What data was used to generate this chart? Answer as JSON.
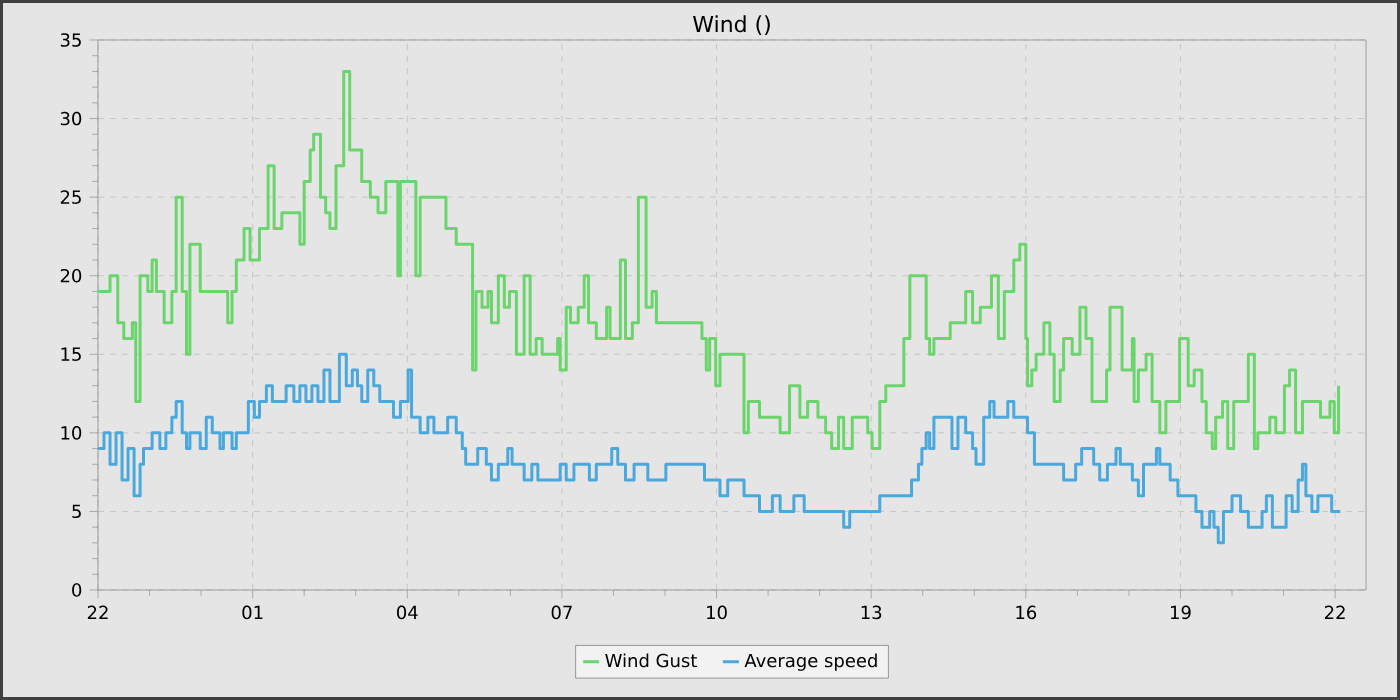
{
  "chart_data": {
    "type": "step",
    "title": "Wind ()",
    "xlim": [
      "--01-01T22:00",
      "--01-02T22:36"
    ],
    "ylim": [
      0,
      35
    ],
    "xticks": [
      {
        "value": "--01-01T22:00",
        "label": "22"
      },
      {
        "value": "--01-02T01:00",
        "label": "01"
      },
      {
        "value": "--01-02T04:00",
        "label": "04"
      },
      {
        "value": "--01-02T07:00",
        "label": "07"
      },
      {
        "value": "--01-02T10:00",
        "label": "10"
      },
      {
        "value": "--01-02T13:00",
        "label": "13"
      },
      {
        "value": "--01-02T16:00",
        "label": "16"
      },
      {
        "value": "--01-02T19:00",
        "label": "19"
      },
      {
        "value": "--01-02T22:00",
        "label": "22"
      }
    ],
    "yticks": [
      0,
      5,
      10,
      15,
      20,
      25,
      30,
      35
    ],
    "grid": true,
    "legend": "bottom",
    "series": [
      {
        "name": "Wind Gust",
        "color": "#6cd46c",
        "x": [
          "--01-01T22:00",
          "--01-01T22:14",
          "--01-01T22:23",
          "--01-01T22:30",
          "--01-01T22:40",
          "--01-01T22:44",
          "--01-01T22:49",
          "--01-01T22:58",
          "--01-01T23:03",
          "--01-01T23:08",
          "--01-01T23:17",
          "--01-01T23:26",
          "--01-01T23:31",
          "--01-01T23:38",
          "--01-01T23:43",
          "--01-01T23:47",
          "--01-01T23:59",
          "--01-02T00:17",
          "--01-02T00:31",
          "--01-02T00:36",
          "--01-02T00:41",
          "--01-02T00:50",
          "--01-02T00:57",
          "--01-02T01:08",
          "--01-02T01:18",
          "--01-02T01:25",
          "--01-02T01:34",
          "--01-02T01:55",
          "--01-02T02:00",
          "--01-02T02:07",
          "--01-02T02:11",
          "--01-02T02:19",
          "--01-02T02:25",
          "--01-02T02:30",
          "--01-02T02:37",
          "--01-02T02:46",
          "--01-02T02:53",
          "--01-02T03:07",
          "--01-02T03:17",
          "--01-02T03:26",
          "--01-02T03:35",
          "--01-02T03:49",
          "--01-02T03:52",
          "--01-02T04:10",
          "--01-02T04:15",
          "--01-02T04:45",
          "--01-02T04:57",
          "--01-02T05:16",
          "--01-02T05:20",
          "--01-02T05:27",
          "--01-02T05:34",
          "--01-02T05:38",
          "--01-02T05:46",
          "--01-02T05:53",
          "--01-02T05:59",
          "--01-02T06:07",
          "--01-02T06:16",
          "--01-02T06:23",
          "--01-02T06:30",
          "--01-02T06:37",
          "--01-02T06:55",
          "--01-02T06:58",
          "--01-02T07:05",
          "--01-02T07:10",
          "--01-02T07:19",
          "--01-02T07:26",
          "--01-02T07:31",
          "--01-02T07:40",
          "--01-02T07:52",
          "--01-02T07:56",
          "--01-02T08:08",
          "--01-02T08:14",
          "--01-02T08:22",
          "--01-02T08:29",
          "--01-02T08:38",
          "--01-02T08:45",
          "--01-02T08:50",
          "--01-02T09:43",
          "--01-02T09:48",
          "--01-02T09:52",
          "--01-02T09:59",
          "--01-02T10:04",
          "--01-02T10:32",
          "--01-02T10:37",
          "--01-02T10:50",
          "--01-02T11:14",
          "--01-02T11:25",
          "--01-02T11:37",
          "--01-02T11:46",
          "--01-02T11:58",
          "--01-02T12:07",
          "--01-02T12:14",
          "--01-02T12:22",
          "--01-02T12:28",
          "--01-02T12:38",
          "--01-02T12:56",
          "--01-02T13:01",
          "--01-02T13:10",
          "--01-02T13:17",
          "--01-02T13:38",
          "--01-02T13:45",
          "--01-02T14:04",
          "--01-02T14:08",
          "--01-02T14:13",
          "--01-02T14:32",
          "--01-02T14:50",
          "--01-02T14:58",
          "--01-02T15:07",
          "--01-02T15:20",
          "--01-02T15:28",
          "--01-02T15:35",
          "--01-02T15:46",
          "--01-02T15:53",
          "--01-02T16:00",
          "--01-02T16:02",
          "--01-02T16:07",
          "--01-02T16:12",
          "--01-02T16:21",
          "--01-02T16:28",
          "--01-02T16:33",
          "--01-02T16:40",
          "--01-02T16:44",
          "--01-02T16:54",
          "--01-02T17:03",
          "--01-02T17:10",
          "--01-02T17:17",
          "--01-02T17:34",
          "--01-02T17:38",
          "--01-02T17:52",
          "--01-02T18:04",
          "--01-02T18:06",
          "--01-02T18:11",
          "--01-02T18:20",
          "--01-02T18:27",
          "--01-02T18:36",
          "--01-02T18:43",
          "--01-02T18:59",
          "--01-02T19:09",
          "--01-02T19:16",
          "--01-02T19:25",
          "--01-02T19:30",
          "--01-02T19:37",
          "--01-02T19:41",
          "--01-02T19:49",
          "--01-02T19:55",
          "--01-02T20:02",
          "--01-02T20:19",
          "--01-02T20:26",
          "--01-02T20:30",
          "--01-02T20:44",
          "--01-02T20:51",
          "--01-02T21:01",
          "--01-02T21:07",
          "--01-02T21:14",
          "--01-02T21:22",
          "--01-02T21:43",
          "--01-02T21:54",
          "--01-02T21:59",
          "--01-02T22:04"
        ],
        "values": [
          19,
          20,
          17,
          16,
          17,
          12,
          20,
          19,
          21,
          19,
          17,
          19,
          25,
          19,
          15,
          22,
          19,
          19,
          17,
          19,
          21,
          23,
          21,
          23,
          27,
          23,
          24,
          22,
          26,
          28,
          29,
          25,
          24,
          23,
          27,
          33,
          28,
          26,
          25,
          24,
          26,
          20,
          26,
          20,
          25,
          23,
          22,
          14,
          19,
          18,
          19,
          17,
          20,
          18,
          19,
          15,
          20,
          15,
          16,
          15,
          16,
          14,
          18,
          17,
          18,
          20,
          17,
          16,
          18,
          16,
          21,
          16,
          17,
          25,
          18,
          19,
          17,
          16,
          14,
          16,
          13,
          15,
          10,
          12,
          11,
          10,
          13,
          11,
          12,
          11,
          10,
          9,
          11,
          9,
          11,
          10,
          9,
          12,
          13,
          16,
          20,
          16,
          15,
          16,
          17,
          19,
          17,
          18,
          20,
          16,
          19,
          21,
          22,
          16,
          13,
          14,
          15,
          17,
          15,
          12,
          14,
          16,
          15,
          18,
          16,
          12,
          14,
          18,
          14,
          16,
          12,
          14,
          15,
          12,
          10,
          12,
          16,
          13,
          14,
          12,
          10,
          9,
          11,
          12,
          9,
          12,
          15,
          9,
          10,
          11,
          10,
          13,
          14,
          10,
          12,
          11,
          12,
          10,
          13
        ]
      },
      {
        "name": "Average speed",
        "color": "#4aa8dc",
        "x": [
          "--01-01T22:00",
          "--01-01T22:07",
          "--01-01T22:14",
          "--01-01T22:21",
          "--01-01T22:28",
          "--01-01T22:35",
          "--01-01T22:42",
          "--01-01T22:49",
          "--01-01T22:53",
          "--01-01T23:03",
          "--01-01T23:12",
          "--01-01T23:19",
          "--01-01T23:26",
          "--01-01T23:31",
          "--01-01T23:38",
          "--01-01T23:43",
          "--01-01T23:47",
          "--01-01T23:59",
          "--01-02T00:06",
          "--01-02T00:13",
          "--01-02T00:22",
          "--01-02T00:26",
          "--01-02T00:36",
          "--01-02T00:41",
          "--01-02T00:55",
          "--01-02T01:02",
          "--01-02T01:08",
          "--01-02T01:16",
          "--01-02T01:23",
          "--01-02T01:39",
          "--01-02T01:48",
          "--01-02T01:55",
          "--01-02T02:02",
          "--01-02T02:09",
          "--01-02T02:16",
          "--01-02T02:23",
          "--01-02T02:30",
          "--01-02T02:41",
          "--01-02T02:49",
          "--01-02T02:56",
          "--01-02T03:02",
          "--01-02T03:07",
          "--01-02T03:14",
          "--01-02T03:21",
          "--01-02T03:28",
          "--01-02T03:44",
          "--01-02T03:52",
          "--01-02T04:01",
          "--01-02T04:05",
          "--01-02T04:15",
          "--01-02T04:24",
          "--01-02T04:31",
          "--01-02T04:47",
          "--01-02T04:57",
          "--01-02T05:04",
          "--01-02T05:08",
          "--01-02T05:22",
          "--01-02T05:32",
          "--01-02T05:38",
          "--01-02T05:46",
          "--01-02T05:57",
          "--01-02T06:02",
          "--01-02T06:16",
          "--01-02T06:25",
          "--01-02T06:32",
          "--01-02T06:58",
          "--01-02T07:05",
          "--01-02T07:14",
          "--01-02T07:32",
          "--01-02T07:40",
          "--01-02T07:58",
          "--01-02T08:05",
          "--01-02T08:14",
          "--01-02T08:24",
          "--01-02T08:40",
          "--01-02T09:01",
          "--01-02T09:46",
          "--01-02T10:04",
          "--01-02T10:13",
          "--01-02T10:32",
          "--01-02T10:50",
          "--01-02T11:05",
          "--01-02T11:14",
          "--01-02T11:30",
          "--01-02T11:42",
          "--01-02T12:28",
          "--01-02T12:35",
          "--01-02T13:10",
          "--01-02T13:47",
          "--01-02T13:55",
          "--01-02T13:59",
          "--01-02T14:04",
          "--01-02T14:08",
          "--01-02T14:13",
          "--01-02T14:34",
          "--01-02T14:41",
          "--01-02T14:50",
          "--01-02T14:58",
          "--01-02T15:02",
          "--01-02T15:11",
          "--01-02T15:18",
          "--01-02T15:23",
          "--01-02T15:39",
          "--01-02T15:46",
          "--01-02T16:02",
          "--01-02T16:10",
          "--01-02T16:44",
          "--01-02T16:58",
          "--01-02T17:05",
          "--01-02T17:19",
          "--01-02T17:26",
          "--01-02T17:35",
          "--01-02T17:45",
          "--01-02T17:50",
          "--01-02T18:04",
          "--01-02T18:11",
          "--01-02T18:17",
          "--01-02T18:32",
          "--01-02T18:36",
          "--01-02T18:48",
          "--01-02T18:57",
          "--01-02T19:18",
          "--01-02T19:25",
          "--01-02T19:34",
          "--01-02T19:39",
          "--01-02T19:44",
          "--01-02T19:50",
          "--01-02T20:00",
          "--01-02T20:10",
          "--01-02T20:19",
          "--01-02T20:35",
          "--01-02T20:40",
          "--01-02T20:47",
          "--01-02T21:03",
          "--01-02T21:10",
          "--01-02T21:17",
          "--01-02T21:22",
          "--01-02T21:26",
          "--01-02T21:33",
          "--01-02T21:40",
          "--01-02T21:56",
          "--01-02T22:06"
        ],
        "values": [
          9,
          10,
          8,
          10,
          7,
          9,
          6,
          8,
          9,
          10,
          9,
          10,
          11,
          12,
          10,
          9,
          10,
          9,
          11,
          10,
          9,
          10,
          9,
          10,
          12,
          11,
          12,
          13,
          12,
          13,
          12,
          13,
          12,
          13,
          12,
          14,
          12,
          15,
          13,
          14,
          13,
          12,
          14,
          13,
          12,
          11,
          12,
          14,
          11,
          10,
          11,
          10,
          11,
          10,
          9,
          8,
          9,
          8,
          7,
          8,
          9,
          8,
          7,
          8,
          7,
          8,
          7,
          8,
          7,
          8,
          9,
          8,
          7,
          8,
          7,
          8,
          7,
          6,
          7,
          6,
          5,
          6,
          5,
          6,
          5,
          4,
          5,
          6,
          7,
          8,
          9,
          10,
          9,
          11,
          9,
          11,
          10,
          9,
          8,
          11,
          12,
          11,
          12,
          11,
          10,
          8,
          7,
          8,
          9,
          8,
          7,
          8,
          9,
          8,
          7,
          6,
          8,
          9,
          8,
          7,
          6,
          5,
          4,
          5,
          4,
          3,
          5,
          6,
          5,
          4,
          5,
          6,
          4,
          6,
          5,
          7,
          8,
          6,
          5,
          6,
          5,
          5
        ]
      }
    ]
  }
}
